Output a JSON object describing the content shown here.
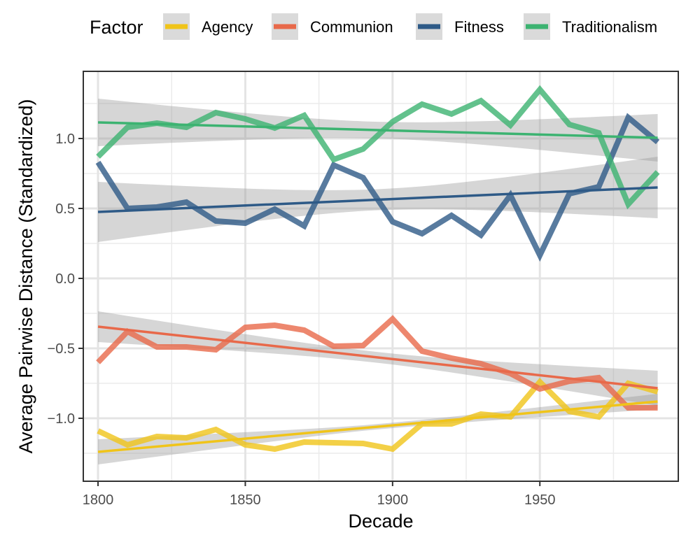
{
  "chart_data": {
    "type": "line",
    "xlabel": "Decade",
    "ylabel": "Average Pairwise Distance (Standardized)",
    "xlim": [
      1795,
      1997
    ],
    "ylim": [
      -1.45,
      1.48
    ],
    "x_ticks": [
      1800,
      1850,
      1900,
      1950
    ],
    "x_tick_labels": [
      "1800",
      "1850",
      "1900",
      "1950"
    ],
    "y_ticks": [
      1.0,
      0.5,
      0.0,
      -0.5,
      -1.0
    ],
    "y_tick_labels": [
      "1.0",
      "0.5",
      "0.0",
      "−0.5",
      "−1.0"
    ],
    "grid": true,
    "legend": {
      "title": "Factor",
      "position": "top"
    },
    "x": [
      1800,
      1810,
      1820,
      1830,
      1840,
      1850,
      1860,
      1870,
      1880,
      1890,
      1900,
      1910,
      1920,
      1930,
      1940,
      1950,
      1960,
      1970,
      1980,
      1990
    ],
    "series": [
      {
        "name": "Agency",
        "color": "#f0c419",
        "values": [
          -1.09,
          -1.19,
          -1.13,
          -1.14,
          -1.08,
          -1.19,
          -1.22,
          -1.17,
          -1.175,
          -1.18,
          -1.22,
          -1.04,
          -1.04,
          -0.97,
          -0.99,
          -0.74,
          -0.95,
          -0.99,
          -0.75,
          -0.81
        ],
        "trend": [
          -1.24,
          -0.88
        ],
        "ci_lower": [
          -1.33,
          -0.93
        ],
        "ci_upper": [
          -1.15,
          -0.82
        ]
      },
      {
        "name": "Communion",
        "color": "#e8694a",
        "values": [
          -0.6,
          -0.38,
          -0.49,
          -0.49,
          -0.51,
          -0.35,
          -0.335,
          -0.37,
          -0.485,
          -0.48,
          -0.29,
          -0.52,
          -0.57,
          -0.61,
          -0.68,
          -0.79,
          -0.735,
          -0.71,
          -0.925,
          -0.925
        ],
        "trend": [
          -0.345,
          -0.785
        ],
        "ci_lower": [
          -0.46,
          -0.91
        ],
        "ci_upper": [
          -0.24,
          -0.66
        ]
      },
      {
        "name": "Fitness",
        "color": "#2e5a87",
        "values": [
          0.83,
          0.5,
          0.51,
          0.545,
          0.41,
          0.395,
          0.495,
          0.375,
          0.81,
          0.72,
          0.405,
          0.32,
          0.45,
          0.31,
          0.595,
          0.165,
          0.605,
          0.655,
          1.15,
          0.975
        ],
        "trend": [
          0.475,
          0.65
        ],
        "ci_lower": [
          0.26,
          0.43
        ],
        "ci_upper": [
          0.69,
          0.87
        ]
      },
      {
        "name": "Traditionalism",
        "color": "#3cb371",
        "values": [
          0.87,
          1.08,
          1.11,
          1.08,
          1.185,
          1.14,
          1.075,
          1.165,
          0.85,
          0.925,
          1.12,
          1.245,
          1.175,
          1.27,
          1.095,
          1.35,
          1.1,
          1.04,
          0.53,
          0.76
        ],
        "trend": [
          1.115,
          1.005
        ],
        "ci_lower": [
          0.94,
          0.84
        ],
        "ci_upper": [
          1.28,
          1.18
        ]
      }
    ]
  }
}
